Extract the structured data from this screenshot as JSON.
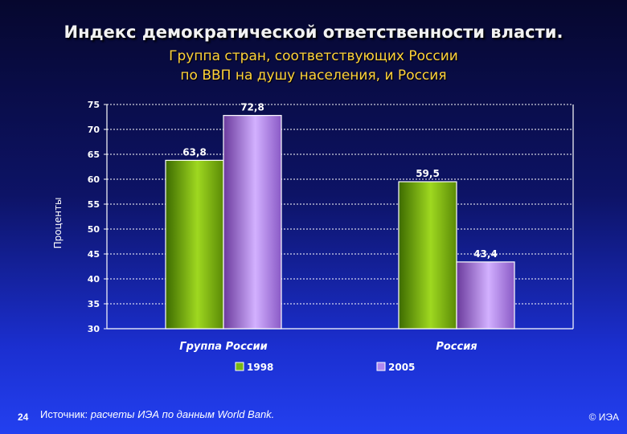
{
  "title": "Индекс демократической ответственности власти.",
  "subtitle_lines": [
    "Группа стран, соответствующих России",
    "по ВВП на душу населения, и Россия"
  ],
  "chart_data": {
    "type": "bar",
    "categories": [
      "Группа России",
      "Россия"
    ],
    "series": [
      {
        "name": "1998",
        "values": [
          63.8,
          59.5
        ],
        "labels": [
          "63,8",
          "59,5"
        ],
        "color": "#7ab814"
      },
      {
        "name": "2005",
        "values": [
          72.8,
          43.4
        ],
        "labels": [
          "72,8",
          "43,4"
        ],
        "color": "#b088f0"
      }
    ],
    "ylabel": "Проценты",
    "ylim": [
      30,
      75
    ],
    "yticks": [
      30,
      35,
      40,
      45,
      50,
      55,
      60,
      65,
      70,
      75
    ],
    "grid": true,
    "legend_position": "bottom"
  },
  "footer": {
    "slide_number": "24",
    "source_prefix": "Источник:",
    "source_text": "расчеты ИЭА по данным World Bank.",
    "copyright": "© ИЭА"
  }
}
